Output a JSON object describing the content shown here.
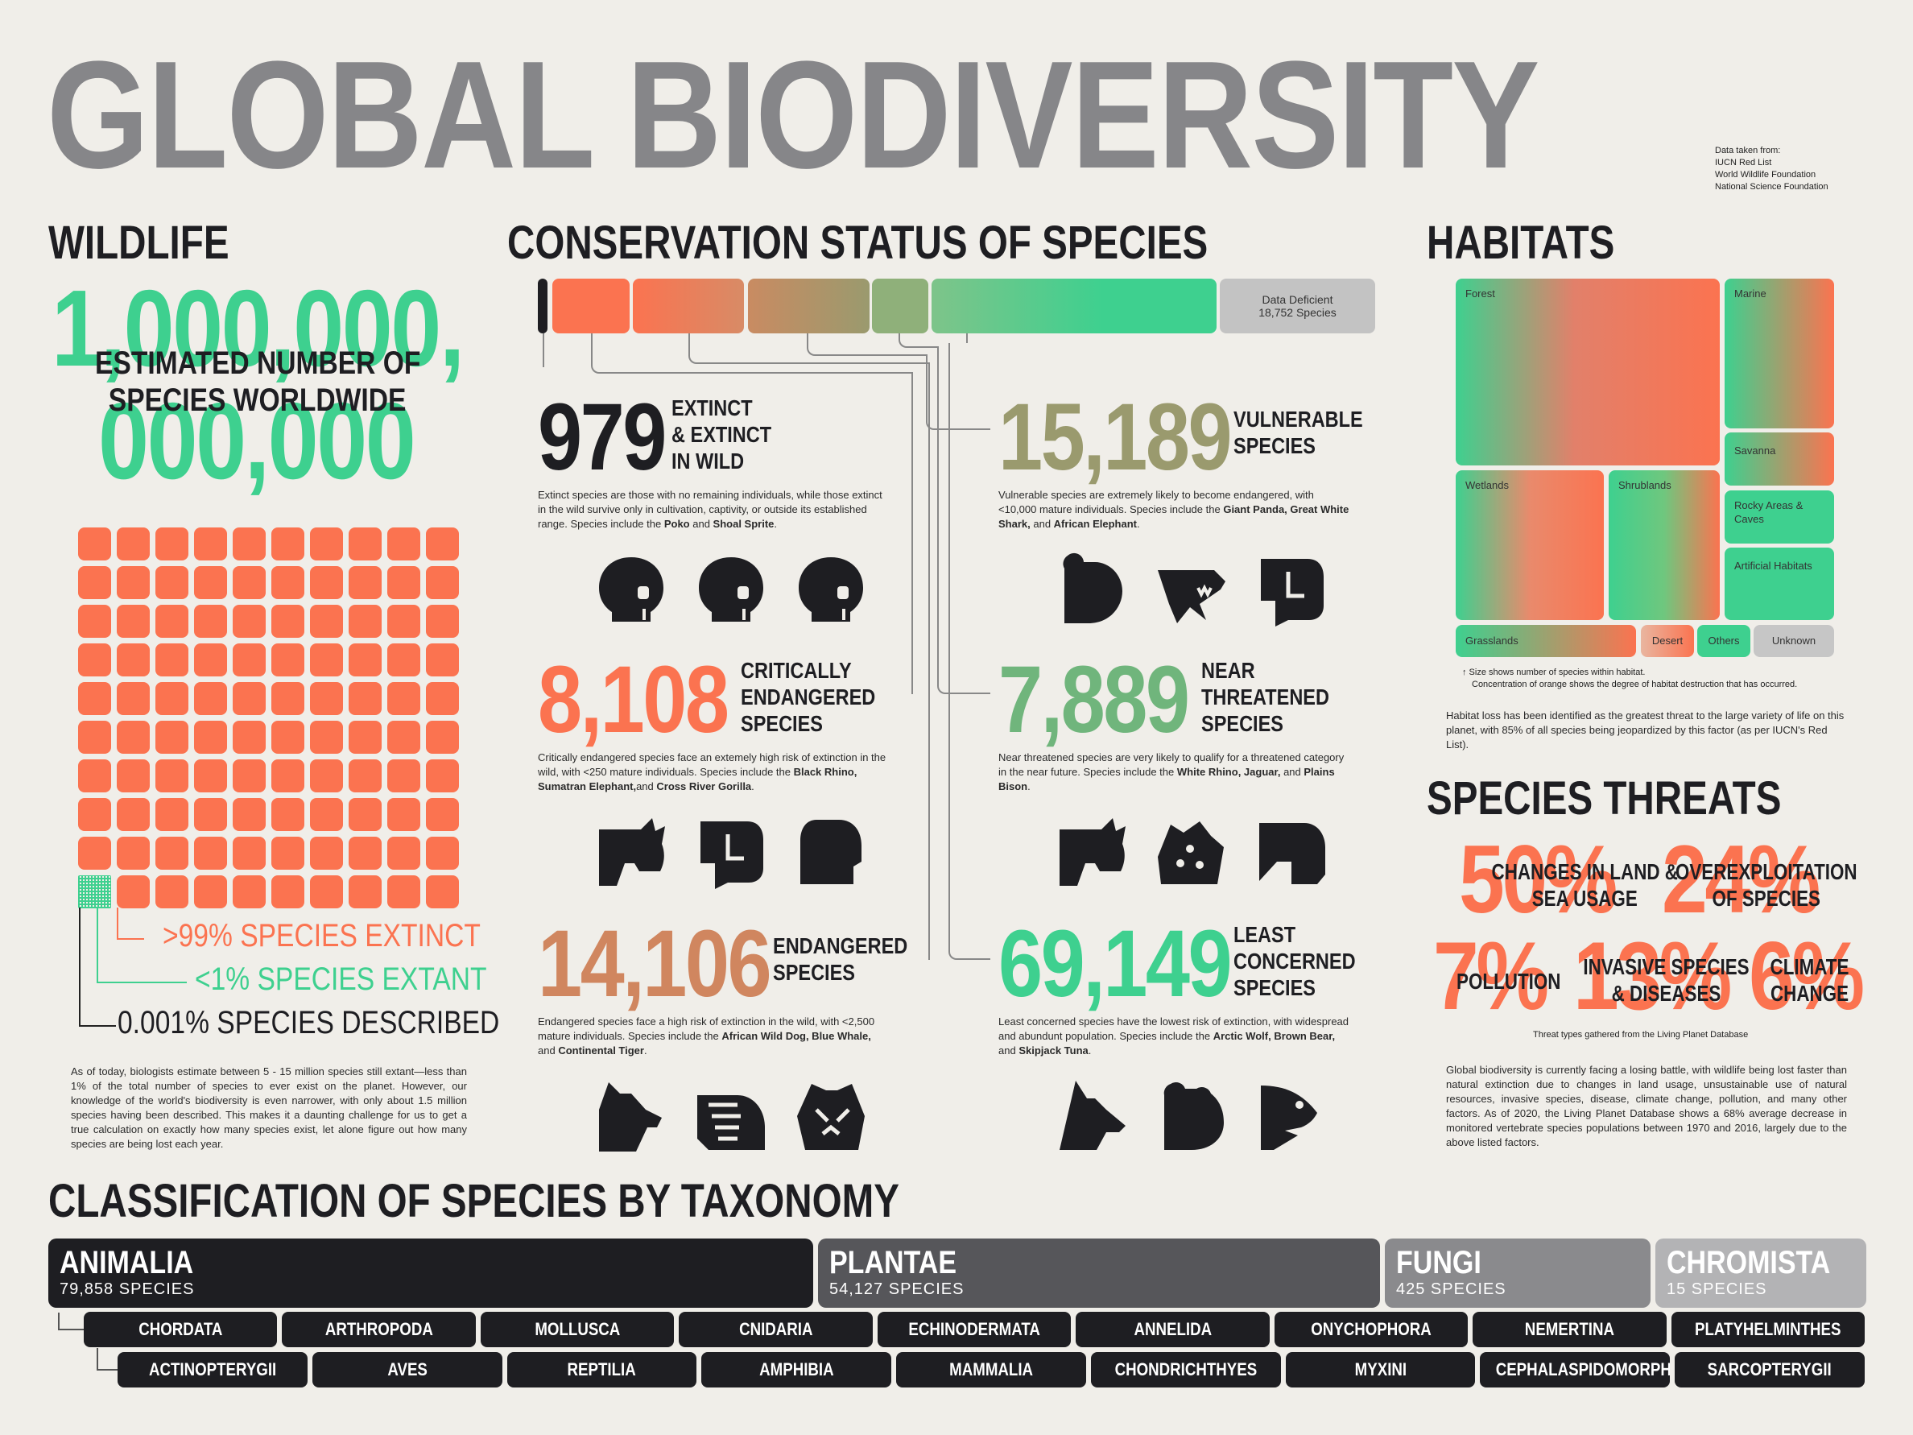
{
  "title": "GLOBAL BIODIVERSITY",
  "sources": {
    "heading": "Data taken from:",
    "items": [
      "IUCN Red List",
      "World Wildlife Foundation",
      "National Science Foundation"
    ]
  },
  "wildlife": {
    "heading": "WILDLIFE",
    "big_number_top": "1,000,000,",
    "big_number_bottom": "000,000",
    "overlay_1": "ESTIMATED NUMBER OF",
    "overlay_2": "SPECIES WORLDWIDE",
    "legend": {
      "extinct": ">99% SPECIES EXTINCT",
      "extant": "<1% SPECIES EXTANT",
      "described": "0.001% SPECIES DESCRIBED"
    },
    "body": "As of today, biologists estimate between 5 - 15 million species still extant—less than 1% of the total number of species to ever exist on the planet. However, our knowledge of the world's biodiversity is even narrower, with only about 1.5 million species having been described. This makes it a daunting challenge for us to get a true calculation on exactly how many species exist, let alone figure out how many species are being lost each year.",
    "waffle": {
      "extinct_pct": 99,
      "extant_pct": 1,
      "colors": {
        "extinct": "#fb7350",
        "extant": "#3ed08f"
      }
    }
  },
  "conservation": {
    "heading": "CONSERVATION STATUS OF SPECIES",
    "data_deficient": {
      "label": "Data Deficient",
      "value": "18,752 Species"
    },
    "categories": [
      {
        "number": "979",
        "label": [
          "EXTINCT",
          "& EXTINCT",
          "IN WILD"
        ],
        "color": "#1e1e22",
        "icons": [
          "skull-icon",
          "skull-icon",
          "skull-icon"
        ],
        "text": [
          "Extinct species are those with no remaining individuals, while those extinct in the wild survive only in cultivation, captivity, or outside its established range. Species include the ",
          "Poko",
          " and ",
          "Shoal Sprite",
          "."
        ]
      },
      {
        "number": "8,108",
        "label": [
          "CRITICALLY",
          "ENDANGERED",
          "SPECIES"
        ],
        "color": "#fb7350",
        "icons": [
          "rhino-icon",
          "elephant-icon",
          "gorilla-icon"
        ],
        "text": [
          "Critically endangered species face an extemely high risk of extinction in the wild, with <250 mature individuals. Species include the ",
          "Black Rhino, Sumatran Elephant,",
          "and ",
          "Cross River Gorilla",
          "."
        ]
      },
      {
        "number": "14,106",
        "label": [
          "ENDANGERED",
          "SPECIES"
        ],
        "color": "#d0865f",
        "icons": [
          "wild-dog-icon",
          "whale-icon",
          "tiger-icon"
        ],
        "text": [
          "Endangered species face a high risk of extinction in the wild, with <2,500 mature individuals. Species include the ",
          "African Wild Dog, Blue Whale,",
          " and ",
          "Continental Tiger",
          "."
        ]
      },
      {
        "number": "15,189",
        "label": [
          "VULNERABLE",
          "SPECIES"
        ],
        "color": "#9a9a6e",
        "icons": [
          "panda-icon",
          "shark-icon",
          "elephant-icon"
        ],
        "text": [
          "Vulnerable species are extremely likely to become endangered, with <10,000 mature individuals. Species include the ",
          "Giant Panda, Great White Shark,",
          " and ",
          "African Elephant",
          "."
        ]
      },
      {
        "number": "7,889",
        "label": [
          "NEAR",
          "THREATENED",
          "SPECIES"
        ],
        "color": "#70b57c",
        "icons": [
          "rhino-icon",
          "jaguar-icon",
          "bison-icon"
        ],
        "text": [
          "Near threatened species are very likely to qualify for a threatened category in the near future. Species include the ",
          "White Rhino, Jaguar,",
          " and ",
          "Plains Bison",
          "."
        ]
      },
      {
        "number": "69,149",
        "label": [
          "LEAST",
          "CONCERNED",
          "SPECIES"
        ],
        "color": "#3ed08f",
        "icons": [
          "wolf-icon",
          "bear-icon",
          "fish-icon"
        ],
        "text": [
          "Least concerned species have the lowest risk of extinction, with widespread and abundunt population. Species include the ",
          "Arctic Wolf, Brown Bear,",
          " and ",
          "Skipjack Tuna",
          "."
        ]
      }
    ]
  },
  "habitats": {
    "heading": "HABITATS",
    "tiles": [
      "Forest",
      "Marine",
      "Savanna",
      "Wetlands",
      "Shrublands",
      "Rocky Areas & Caves",
      "Artificial Habitats",
      "Grasslands",
      "Desert",
      "Others",
      "Unknown"
    ],
    "note_1": "↑ Size shows number of species within habitat.",
    "note_2": "Concentration of orange shows the degree of habitat destruction that has occurred.",
    "body": "Habitat loss has been identified as the greatest threat to the large variety of life on this planet, with 85% of all species being jeopardized by this factor (as per IUCN's Red List)."
  },
  "threats": {
    "heading": "SPECIES THREATS",
    "items": [
      {
        "pct": "50%",
        "label": "CHANGES IN LAND & SEA USAGE"
      },
      {
        "pct": "24%",
        "label": "OVEREXPLOITATION OF SPECIES"
      },
      {
        "pct": "7%",
        "label": "POLLUTION"
      },
      {
        "pct": "13%",
        "label": "INVASIVE SPECIES & DISEASES"
      },
      {
        "pct": "6%",
        "label": "CLIMATE CHANGE"
      }
    ],
    "note": "Threat types gathered from the Living Planet Database",
    "body": "Global biodiversity is currently facing a losing battle, with wildlife being lost faster than natural extinction due to changes in land usage, unsustainable use of natural resources, invasive species, disease, climate change, pollution, and many other factors. As of 2020, the Living Planet Database shows a 68% average decrease in monitored vertebrate species populations between 1970 and 2016, largely due to the above listed factors."
  },
  "taxonomy": {
    "heading": "CLASSIFICATION OF SPECIES BY TAXONOMY",
    "kingdoms": [
      {
        "name": "ANIMALIA",
        "count": "79,858 SPECIES",
        "color": "#1e1e22"
      },
      {
        "name": "PLANTAE",
        "count": "54,127 SPECIES",
        "color": "#56565a"
      },
      {
        "name": "FUNGI",
        "count": "425 SPECIES",
        "color": "#8a8a8d"
      },
      {
        "name": "CHROMISTA",
        "count": "15 SPECIES",
        "color": "#b3b3b5"
      }
    ],
    "phyla": [
      "CHORDATA",
      "ARTHROPODA",
      "MOLLUSCA",
      "CNIDARIA",
      "ECHINODERMATA",
      "ANNELIDA",
      "ONYCHOPHORA",
      "NEMERTINA",
      "PLATYHELMINTHES"
    ],
    "classes": [
      "ACTINOPTERYGII",
      "AVES",
      "REPTILIA",
      "AMPHIBIA",
      "MAMMALIA",
      "CHONDRICHTHYES",
      "MYXINI",
      "CEPHALASPIDOMORPHI",
      "SARCOPTERYGII"
    ]
  }
}
